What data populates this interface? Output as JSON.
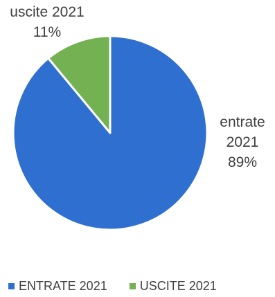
{
  "chart_data": {
    "type": "pie",
    "slices": [
      {
        "key": "entrate",
        "label_line1": "entrate",
        "label_line2": "2021",
        "label_line3": "89%",
        "legend": "ENTRATE 2021",
        "value": 89,
        "color": "#2f6fd0"
      },
      {
        "key": "uscite",
        "label_line1": "uscite 2021",
        "label_line2": "11%",
        "legend": "USCITE 2021",
        "value": 11,
        "color": "#74b152"
      }
    ],
    "legend_position": "bottom"
  }
}
